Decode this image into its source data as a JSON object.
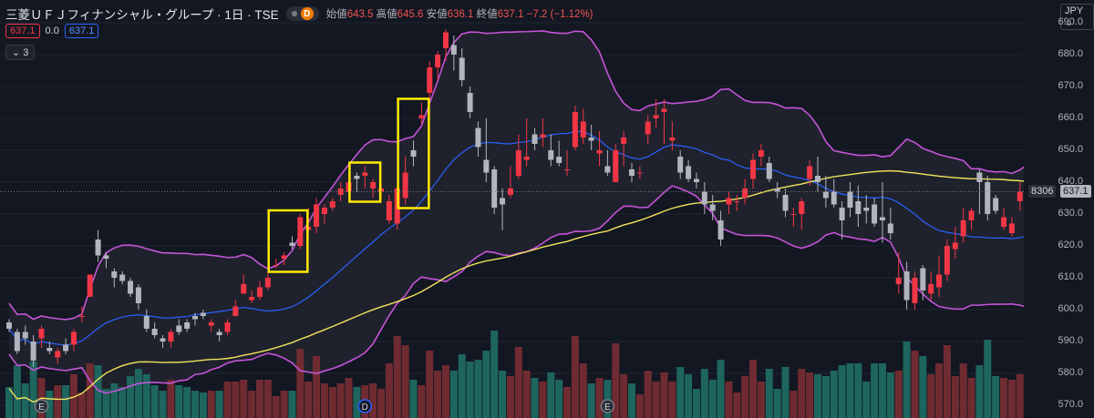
{
  "header": {
    "symbol": "三菱ＵＦＪフィナンシャル・グループ · 1日 · TSE",
    "d_badge": "D",
    "open_label": "始値",
    "open": "643.5",
    "high_label": "高値",
    "high": "645.6",
    "low_label": "安値",
    "low": "636.1",
    "close_label": "終値",
    "close": "637.1",
    "change": "−7.2 (−1.12%)"
  },
  "row2": {
    "bid": "637.1",
    "spread": "0.0",
    "ask": "637.1"
  },
  "indicators_toggle": "3",
  "currency": "JPY",
  "price_tags": {
    "ticker": "8306",
    "last": "637.1"
  },
  "colors": {
    "up": "#f23645",
    "down": "#b2b5be",
    "bb": "#c554d8",
    "sma": "#2962ff",
    "ma_long": "#f2e35b",
    "highlight": "#ffeb00"
  },
  "chart_data": {
    "type": "candlestick",
    "yaxis_ticks": [
      690.0,
      680.0,
      670.0,
      660.0,
      650.0,
      640.0,
      630.0,
      620.0,
      610.0,
      600.0,
      590.0,
      580.0,
      570.0
    ],
    "ylim": [
      566,
      696
    ],
    "candles": [
      [
        596,
        597,
        593,
        594
      ],
      [
        593,
        594,
        586,
        587
      ],
      [
        593,
        595,
        589,
        591
      ],
      [
        590,
        592,
        582,
        584
      ],
      [
        591,
        595,
        588,
        594
      ],
      [
        588,
        590,
        586,
        587
      ],
      [
        585,
        588,
        583,
        587
      ],
      [
        589,
        591,
        586,
        587
      ],
      [
        589,
        594,
        587,
        593
      ],
      [
        598,
        601,
        596,
        598
      ],
      [
        604,
        611,
        604,
        611
      ],
      [
        622,
        625,
        615,
        617
      ],
      [
        617,
        618,
        613,
        616
      ],
      [
        612,
        613,
        607,
        610
      ],
      [
        611,
        612,
        608,
        609
      ],
      [
        609,
        610,
        604,
        605
      ],
      [
        607,
        608,
        600,
        602
      ],
      [
        598,
        600,
        593,
        594
      ],
      [
        594,
        596,
        591,
        592
      ],
      [
        591,
        592,
        588,
        590
      ],
      [
        590,
        594,
        588,
        593
      ],
      [
        595,
        597,
        592,
        593
      ],
      [
        596,
        597,
        593,
        594
      ],
      [
        598,
        599,
        595,
        597
      ],
      [
        599,
        600,
        597,
        598
      ],
      [
        595,
        597,
        593,
        596
      ],
      [
        593,
        594,
        590,
        592
      ],
      [
        593,
        597,
        592,
        596
      ],
      [
        598,
        603,
        598,
        601
      ],
      [
        605,
        611,
        605,
        608
      ],
      [
        603,
        606,
        602,
        604
      ],
      [
        604,
        609,
        603,
        607
      ],
      [
        607,
        612,
        606,
        610
      ],
      [
        614,
        616,
        613,
        614
      ],
      [
        616,
        618,
        614,
        617
      ],
      [
        621,
        623,
        619,
        620
      ],
      [
        620,
        630,
        619,
        629
      ],
      [
        625,
        632,
        623,
        626
      ],
      [
        626,
        635,
        624,
        633
      ],
      [
        630,
        633,
        627,
        632
      ],
      [
        632,
        635,
        631,
        634
      ],
      [
        636,
        640,
        634,
        638
      ],
      [
        637,
        643,
        636,
        640
      ],
      [
        642,
        643,
        637,
        641
      ],
      [
        642,
        645,
        638,
        643
      ],
      [
        638,
        641,
        635,
        640
      ],
      [
        637,
        640,
        635,
        638
      ],
      [
        628,
        636,
        627,
        634
      ],
      [
        627,
        639,
        625,
        638
      ],
      [
        635,
        648,
        633,
        643
      ],
      [
        650,
        653,
        645,
        648
      ],
      [
        660,
        665,
        658,
        661
      ],
      [
        668,
        678,
        666,
        676
      ],
      [
        676,
        681,
        672,
        680
      ],
      [
        682,
        688,
        678,
        687
      ],
      [
        683,
        686,
        675,
        680
      ],
      [
        679,
        682,
        670,
        672
      ],
      [
        668,
        670,
        660,
        662
      ],
      [
        657,
        659,
        648,
        651
      ],
      [
        647,
        660,
        640,
        643
      ],
      [
        644,
        645,
        630,
        632
      ],
      [
        635,
        638,
        625,
        633
      ],
      [
        636,
        645,
        635,
        638
      ],
      [
        642,
        655,
        641,
        650
      ],
      [
        647,
        660,
        645,
        648
      ],
      [
        655,
        657,
        650,
        652
      ],
      [
        654,
        660,
        651,
        655
      ],
      [
        650,
        655,
        645,
        647
      ],
      [
        648,
        653,
        645,
        646
      ],
      [
        644,
        650,
        642,
        644
      ],
      [
        651,
        664,
        650,
        662
      ],
      [
        654,
        663,
        652,
        659
      ],
      [
        654,
        658,
        650,
        653
      ],
      [
        649,
        656,
        645,
        650
      ],
      [
        645,
        650,
        642,
        643
      ],
      [
        640,
        652,
        640,
        650
      ],
      [
        652,
        656,
        645,
        654
      ],
      [
        644,
        646,
        640,
        642
      ],
      [
        643,
        645,
        641,
        643
      ],
      [
        655,
        661,
        652,
        659
      ],
      [
        660,
        666,
        657,
        661
      ],
      [
        662,
        666,
        652,
        663
      ],
      [
        653,
        659,
        650,
        654
      ],
      [
        648,
        650,
        641,
        643
      ],
      [
        645,
        647,
        640,
        641
      ],
      [
        641,
        643,
        638,
        640
      ],
      [
        637,
        640,
        630,
        633
      ],
      [
        633,
        636,
        628,
        631
      ],
      [
        628,
        631,
        620,
        622
      ],
      [
        633,
        637,
        630,
        635
      ],
      [
        634,
        636,
        631,
        634
      ],
      [
        635,
        641,
        633,
        638
      ],
      [
        641,
        649,
        638,
        647
      ],
      [
        648,
        652,
        645,
        650
      ],
      [
        646,
        648,
        640,
        641
      ],
      [
        638,
        640,
        635,
        637
      ],
      [
        636,
        638,
        629,
        631
      ],
      [
        630,
        632,
        626,
        630
      ],
      [
        630,
        635,
        625,
        634
      ],
      [
        641,
        647,
        639,
        645
      ],
      [
        642,
        648,
        637,
        640
      ],
      [
        637,
        642,
        632,
        635
      ],
      [
        637,
        641,
        632,
        633
      ],
      [
        632,
        634,
        622,
        628
      ],
      [
        637,
        640,
        629,
        632
      ],
      [
        634,
        639,
        626,
        630
      ],
      [
        632,
        636,
        627,
        631
      ],
      [
        633,
        635,
        626,
        627
      ],
      [
        629,
        640,
        621,
        628
      ],
      [
        627,
        632,
        622,
        624
      ],
      [
        608,
        618,
        605,
        610
      ],
      [
        612,
        615,
        600,
        603
      ],
      [
        602,
        612,
        600,
        610
      ],
      [
        613,
        614,
        603,
        606
      ],
      [
        605,
        612,
        603,
        608
      ],
      [
        607,
        617,
        604,
        611
      ],
      [
        611,
        622,
        609,
        620
      ],
      [
        619,
        626,
        616,
        621
      ],
      [
        623,
        632,
        621,
        628
      ],
      [
        628,
        632,
        625,
        631
      ],
      [
        643,
        644,
        630,
        640
      ],
      [
        640,
        642,
        628,
        630
      ],
      [
        635,
        636,
        630,
        631
      ],
      [
        626,
        632,
        625,
        629
      ],
      [
        624,
        629,
        623,
        627
      ],
      [
        634,
        640,
        631,
        637
      ],
      [
        638,
        646,
        636,
        642
      ],
      [
        642,
        646,
        638,
        644
      ],
      [
        644,
        646,
        635,
        637
      ]
    ],
    "series": [
      {
        "name": "SMA",
        "kind": "line"
      },
      {
        "name": "Bollinger Bands",
        "kind": "band"
      },
      {
        "name": "Moving Average",
        "kind": "line"
      }
    ],
    "annotations": [
      {
        "type": "highlight_box",
        "candle_range": [
          33,
          36
        ]
      },
      {
        "type": "highlight_box",
        "candle_range": [
          43,
          45
        ]
      },
      {
        "type": "highlight_box",
        "candle_range": [
          49,
          51
        ]
      }
    ],
    "event_markers": [
      {
        "label": "E",
        "candle_index": 4
      },
      {
        "label": "D",
        "candle_index": 44
      },
      {
        "label": "E",
        "candle_index": 74
      }
    ]
  }
}
